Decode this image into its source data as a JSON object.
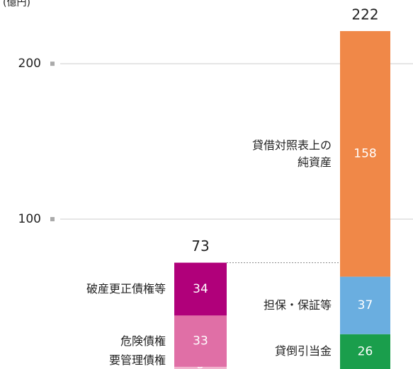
{
  "chart_data": {
    "type": "stacked_bar",
    "y_axis_label": "(億円)",
    "ylim": [
      3.6,
      241
    ],
    "yticks": [
      100,
      200
    ],
    "grid": true,
    "bars": [
      {
        "total": 73,
        "segments": [
          {
            "name": "要管理債権",
            "value": 5,
            "color": "#f2b3cf"
          },
          {
            "name": "危険債権",
            "value": 33,
            "color": "#e06fa6"
          },
          {
            "name": "破産更正債権等",
            "value": 34,
            "color": "#b0007a"
          }
        ]
      },
      {
        "total": 222,
        "segments": [
          {
            "name": "貸倒引当金",
            "value": 26,
            "color": "#1a9e4c"
          },
          {
            "name": "担保・保証等",
            "value": 37,
            "color": "#6aaee0"
          },
          {
            "name": "貸借対照表上の\n純資産",
            "value": 158,
            "color": "#f08848"
          }
        ]
      }
    ]
  }
}
